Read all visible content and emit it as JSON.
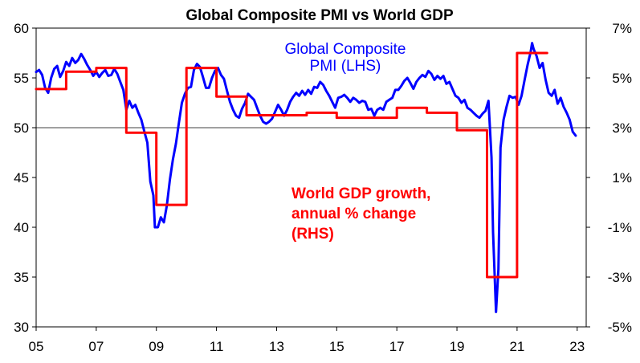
{
  "chart_data": {
    "type": "line",
    "title": "Global Composite PMI vs World GDP",
    "xlabel": "",
    "ylabel": "",
    "x_range": [
      2005,
      2023.3
    ],
    "x_ticks": [
      {
        "label": "05",
        "value": 2005
      },
      {
        "label": "07",
        "value": 2007
      },
      {
        "label": "09",
        "value": 2009
      },
      {
        "label": "11",
        "value": 2011
      },
      {
        "label": "13",
        "value": 2013
      },
      {
        "label": "15",
        "value": 2015
      },
      {
        "label": "17",
        "value": 2017
      },
      {
        "label": "19",
        "value": 2019
      },
      {
        "label": "21",
        "value": 2021
      },
      {
        "label": "23",
        "value": 2023
      }
    ],
    "y_left": {
      "range": [
        30,
        60
      ],
      "ticks": [
        {
          "label": "30",
          "value": 30
        },
        {
          "label": "35",
          "value": 35
        },
        {
          "label": "40",
          "value": 40
        },
        {
          "label": "45",
          "value": 45
        },
        {
          "label": "50",
          "value": 50
        },
        {
          "label": "55",
          "value": 55
        },
        {
          "label": "60",
          "value": 60
        }
      ]
    },
    "y_right": {
      "range": [
        -5,
        7
      ],
      "ticks": [
        {
          "label": "-5%",
          "value": -5
        },
        {
          "label": "-3%",
          "value": -3
        },
        {
          "label": "-1%",
          "value": -1
        },
        {
          "label": "1%",
          "value": 1
        },
        {
          "label": "3%",
          "value": 3
        },
        {
          "label": "5%",
          "value": 5
        },
        {
          "label": "7%",
          "value": 7
        }
      ]
    },
    "reference_line": {
      "axis": "left",
      "value": 50
    },
    "grid": false,
    "legend": "none",
    "annotations": [
      {
        "series": "pmi",
        "lines": [
          "Global Composite",
          "PMI (LHS)"
        ]
      },
      {
        "series": "gdp",
        "lines": [
          "World GDP growth,",
          "annual % change",
          "(RHS)"
        ]
      }
    ],
    "series": [
      {
        "name": "Global Composite PMI (LHS)",
        "axis": "left",
        "color": "#0000ff",
        "points": [
          [
            2005.0,
            55.6
          ],
          [
            2005.1,
            55.8
          ],
          [
            2005.2,
            55.3
          ],
          [
            2005.3,
            54.0
          ],
          [
            2005.4,
            53.5
          ],
          [
            2005.5,
            55.0
          ],
          [
            2005.6,
            55.9
          ],
          [
            2005.7,
            56.2
          ],
          [
            2005.8,
            55.1
          ],
          [
            2005.9,
            55.7
          ],
          [
            2006.0,
            56.6
          ],
          [
            2006.1,
            56.2
          ],
          [
            2006.2,
            57.0
          ],
          [
            2006.3,
            56.5
          ],
          [
            2006.4,
            56.8
          ],
          [
            2006.5,
            57.4
          ],
          [
            2006.6,
            56.9
          ],
          [
            2006.7,
            56.3
          ],
          [
            2006.8,
            55.8
          ],
          [
            2006.9,
            55.2
          ],
          [
            2007.0,
            55.6
          ],
          [
            2007.1,
            55.1
          ],
          [
            2007.2,
            55.5
          ],
          [
            2007.3,
            55.8
          ],
          [
            2007.4,
            55.2
          ],
          [
            2007.5,
            55.3
          ],
          [
            2007.6,
            55.9
          ],
          [
            2007.7,
            55.4
          ],
          [
            2007.8,
            54.6
          ],
          [
            2007.9,
            53.8
          ],
          [
            2008.0,
            51.8
          ],
          [
            2008.1,
            52.7
          ],
          [
            2008.2,
            52.0
          ],
          [
            2008.3,
            52.3
          ],
          [
            2008.4,
            51.5
          ],
          [
            2008.5,
            50.8
          ],
          [
            2008.6,
            49.6
          ],
          [
            2008.7,
            48.5
          ],
          [
            2008.8,
            44.6
          ],
          [
            2008.9,
            43.2
          ],
          [
            2008.95,
            40.0
          ],
          [
            2009.05,
            40.0
          ],
          [
            2009.15,
            41.0
          ],
          [
            2009.25,
            40.5
          ],
          [
            2009.35,
            42.2
          ],
          [
            2009.45,
            44.8
          ],
          [
            2009.55,
            46.8
          ],
          [
            2009.65,
            48.4
          ],
          [
            2009.75,
            50.5
          ],
          [
            2009.85,
            52.5
          ],
          [
            2009.95,
            53.4
          ],
          [
            2010.05,
            54.0
          ],
          [
            2010.15,
            54.1
          ],
          [
            2010.25,
            55.8
          ],
          [
            2010.35,
            56.4
          ],
          [
            2010.45,
            56.1
          ],
          [
            2010.55,
            55.1
          ],
          [
            2010.65,
            54.0
          ],
          [
            2010.75,
            54.0
          ],
          [
            2010.85,
            55.0
          ],
          [
            2010.95,
            55.7
          ],
          [
            2011.05,
            56.0
          ],
          [
            2011.15,
            55.3
          ],
          [
            2011.25,
            54.9
          ],
          [
            2011.35,
            53.7
          ],
          [
            2011.45,
            52.6
          ],
          [
            2011.55,
            51.8
          ],
          [
            2011.65,
            51.2
          ],
          [
            2011.75,
            51.0
          ],
          [
            2011.85,
            51.9
          ],
          [
            2011.95,
            52.5
          ],
          [
            2012.05,
            53.4
          ],
          [
            2012.15,
            53.1
          ],
          [
            2012.25,
            52.8
          ],
          [
            2012.35,
            52.0
          ],
          [
            2012.45,
            51.2
          ],
          [
            2012.55,
            50.6
          ],
          [
            2012.65,
            50.4
          ],
          [
            2012.75,
            50.6
          ],
          [
            2012.85,
            50.9
          ],
          [
            2012.95,
            51.6
          ],
          [
            2013.05,
            52.3
          ],
          [
            2013.15,
            51.8
          ],
          [
            2013.25,
            51.2
          ],
          [
            2013.35,
            51.8
          ],
          [
            2013.45,
            52.6
          ],
          [
            2013.55,
            53.1
          ],
          [
            2013.65,
            53.5
          ],
          [
            2013.75,
            53.2
          ],
          [
            2013.85,
            53.7
          ],
          [
            2013.95,
            53.3
          ],
          [
            2014.05,
            53.8
          ],
          [
            2014.15,
            53.4
          ],
          [
            2014.25,
            54.1
          ],
          [
            2014.35,
            54.0
          ],
          [
            2014.45,
            54.6
          ],
          [
            2014.55,
            54.3
          ],
          [
            2014.65,
            53.7
          ],
          [
            2014.75,
            53.2
          ],
          [
            2014.85,
            52.6
          ],
          [
            2014.95,
            52.0
          ],
          [
            2015.05,
            53.0
          ],
          [
            2015.15,
            53.1
          ],
          [
            2015.25,
            53.3
          ],
          [
            2015.35,
            53.0
          ],
          [
            2015.45,
            52.6
          ],
          [
            2015.55,
            53.0
          ],
          [
            2015.65,
            52.8
          ],
          [
            2015.75,
            52.5
          ],
          [
            2015.85,
            52.7
          ],
          [
            2015.95,
            52.6
          ],
          [
            2016.05,
            51.8
          ],
          [
            2016.15,
            51.9
          ],
          [
            2016.25,
            51.2
          ],
          [
            2016.35,
            51.8
          ],
          [
            2016.45,
            52.0
          ],
          [
            2016.55,
            51.8
          ],
          [
            2016.65,
            52.6
          ],
          [
            2016.75,
            52.8
          ],
          [
            2016.85,
            53.0
          ],
          [
            2016.95,
            53.8
          ],
          [
            2017.05,
            53.8
          ],
          [
            2017.15,
            54.2
          ],
          [
            2017.25,
            54.7
          ],
          [
            2017.35,
            55.0
          ],
          [
            2017.45,
            54.5
          ],
          [
            2017.55,
            53.9
          ],
          [
            2017.65,
            54.6
          ],
          [
            2017.75,
            55.0
          ],
          [
            2017.85,
            55.3
          ],
          [
            2017.95,
            55.1
          ],
          [
            2018.05,
            55.7
          ],
          [
            2018.15,
            55.4
          ],
          [
            2018.25,
            54.8
          ],
          [
            2018.35,
            55.2
          ],
          [
            2018.45,
            54.9
          ],
          [
            2018.55,
            55.2
          ],
          [
            2018.65,
            54.4
          ],
          [
            2018.75,
            54.6
          ],
          [
            2018.85,
            53.9
          ],
          [
            2018.95,
            53.2
          ],
          [
            2019.05,
            53.0
          ],
          [
            2019.15,
            52.5
          ],
          [
            2019.25,
            52.8
          ],
          [
            2019.35,
            52.0
          ],
          [
            2019.45,
            51.8
          ],
          [
            2019.55,
            51.5
          ],
          [
            2019.65,
            51.2
          ],
          [
            2019.75,
            51.0
          ],
          [
            2019.85,
            51.4
          ],
          [
            2019.95,
            51.7
          ],
          [
            2020.05,
            52.7
          ],
          [
            2020.15,
            47.0
          ],
          [
            2020.2,
            39.5
          ],
          [
            2020.3,
            31.5
          ],
          [
            2020.38,
            35.8
          ],
          [
            2020.45,
            48.0
          ],
          [
            2020.55,
            50.8
          ],
          [
            2020.65,
            52.1
          ],
          [
            2020.75,
            53.2
          ],
          [
            2020.85,
            53.0
          ],
          [
            2020.95,
            53.1
          ],
          [
            2021.05,
            52.3
          ],
          [
            2021.15,
            53.2
          ],
          [
            2021.25,
            54.8
          ],
          [
            2021.35,
            56.3
          ],
          [
            2021.45,
            57.6
          ],
          [
            2021.5,
            58.5
          ],
          [
            2021.55,
            57.9
          ],
          [
            2021.65,
            57.2
          ],
          [
            2021.75,
            56.0
          ],
          [
            2021.85,
            56.5
          ],
          [
            2021.95,
            54.8
          ],
          [
            2022.05,
            53.5
          ],
          [
            2022.15,
            53.2
          ],
          [
            2022.25,
            53.8
          ],
          [
            2022.35,
            52.4
          ],
          [
            2022.45,
            53.0
          ],
          [
            2022.55,
            52.1
          ],
          [
            2022.65,
            51.5
          ],
          [
            2022.75,
            50.8
          ],
          [
            2022.85,
            49.6
          ],
          [
            2022.95,
            49.2
          ]
        ]
      },
      {
        "name": "World GDP growth, annual % change (RHS)",
        "axis": "right",
        "color": "#ff0000",
        "step": true,
        "points": [
          [
            2005.0,
            4.55
          ],
          [
            2006.0,
            4.55
          ],
          [
            2006.0,
            5.25
          ],
          [
            2007.0,
            5.25
          ],
          [
            2007.0,
            5.4
          ],
          [
            2008.0,
            5.4
          ],
          [
            2008.0,
            2.8
          ],
          [
            2009.0,
            2.8
          ],
          [
            2009.0,
            -0.1
          ],
          [
            2010.0,
            -0.1
          ],
          [
            2010.0,
            5.4
          ],
          [
            2011.0,
            5.4
          ],
          [
            2011.0,
            4.25
          ],
          [
            2012.0,
            4.25
          ],
          [
            2012.0,
            3.5
          ],
          [
            2014.0,
            3.5
          ],
          [
            2014.0,
            3.6
          ],
          [
            2015.0,
            3.6
          ],
          [
            2015.0,
            3.4
          ],
          [
            2017.0,
            3.4
          ],
          [
            2017.0,
            3.8
          ],
          [
            2018.0,
            3.8
          ],
          [
            2018.0,
            3.6
          ],
          [
            2019.0,
            3.6
          ],
          [
            2019.0,
            2.9
          ],
          [
            2020.0,
            2.9
          ],
          [
            2020.0,
            -3.0
          ],
          [
            2021.0,
            -3.0
          ],
          [
            2021.0,
            6.0
          ],
          [
            2022.0,
            6.0
          ]
        ]
      }
    ]
  }
}
